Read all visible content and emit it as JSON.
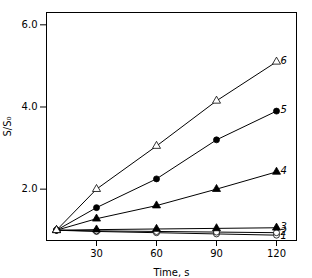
{
  "chart_data": {
    "type": "line",
    "xlabel": "Time, s",
    "ylabel": "S/S₀",
    "x": [
      10,
      30,
      60,
      90,
      120
    ],
    "series": [
      {
        "name": "1",
        "color": "black",
        "marker": "circle_open",
        "values": [
          1.0,
          0.97,
          0.94,
          0.91,
          0.88
        ]
      },
      {
        "name": "2",
        "color": "black",
        "marker": "circle_open",
        "values": [
          1.0,
          0.985,
          0.97,
          0.955,
          0.94
        ]
      },
      {
        "name": "3",
        "color": "black",
        "marker": "triangle_filled",
        "values": [
          1.0,
          1.015,
          1.03,
          1.045,
          1.06
        ]
      },
      {
        "name": "4",
        "color": "black",
        "marker": "triangle_filled",
        "values": [
          1.0,
          1.28,
          1.6,
          2.0,
          2.42
        ]
      },
      {
        "name": "5",
        "color": "black",
        "marker": "circle_filled",
        "values": [
          1.0,
          1.55,
          2.25,
          3.2,
          3.9
        ]
      },
      {
        "name": "6",
        "color": "black",
        "marker": "triangle_open",
        "values": [
          1.0,
          2.0,
          3.05,
          4.15,
          5.1
        ]
      }
    ],
    "annotations": [
      {
        "text": "1",
        "x": 121,
        "y": 0.865
      },
      {
        "text": "2",
        "x": 121,
        "y": 0.955
      },
      {
        "text": "3",
        "x": 121,
        "y": 1.075
      },
      {
        "text": "4",
        "x": 121,
        "y": 2.44
      },
      {
        "text": "5",
        "x": 121,
        "y": 3.92
      },
      {
        "text": "6",
        "x": 121,
        "y": 5.12
      }
    ],
    "xlim": [
      5,
      130
    ],
    "ylim": [
      0.75,
      6.3
    ],
    "xticks": [
      30,
      60,
      90,
      120
    ],
    "yticks": [
      2,
      4,
      6
    ],
    "grid": false
  }
}
